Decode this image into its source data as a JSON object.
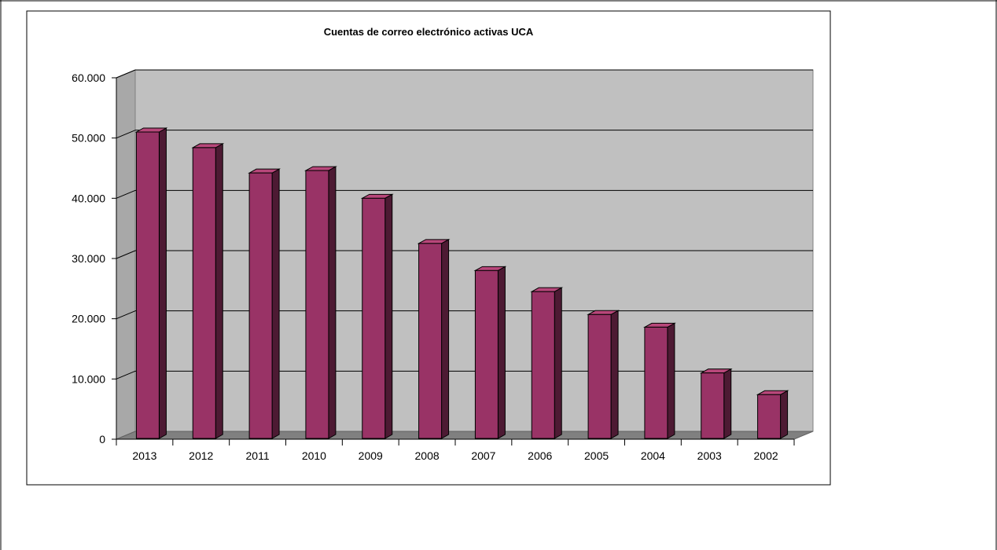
{
  "chart_data": {
    "type": "bar",
    "title": "Cuentas de correo electrónico activas UCA",
    "xlabel": "",
    "ylabel": "",
    "categories": [
      "2013",
      "2012",
      "2011",
      "2010",
      "2009",
      "2008",
      "2007",
      "2006",
      "2005",
      "2004",
      "2003",
      "2002"
    ],
    "values": [
      51000,
      48400,
      44200,
      44600,
      40000,
      32500,
      28000,
      24500,
      20700,
      18600,
      11000,
      7400
    ],
    "ylim": [
      0,
      60000
    ],
    "yticks": [
      0,
      10000,
      20000,
      30000,
      40000,
      50000,
      60000
    ],
    "ytick_labels": [
      "0",
      "10.000",
      "20.000",
      "30.000",
      "40.000",
      "50.000",
      "60.000"
    ],
    "grid": true,
    "legend": "none",
    "colors": {
      "bar_front": "#993366",
      "bar_side": "#4d1a33",
      "bar_top": "#b8477a",
      "plot_wall": "#c0c0c0",
      "floor": "#808080"
    }
  }
}
